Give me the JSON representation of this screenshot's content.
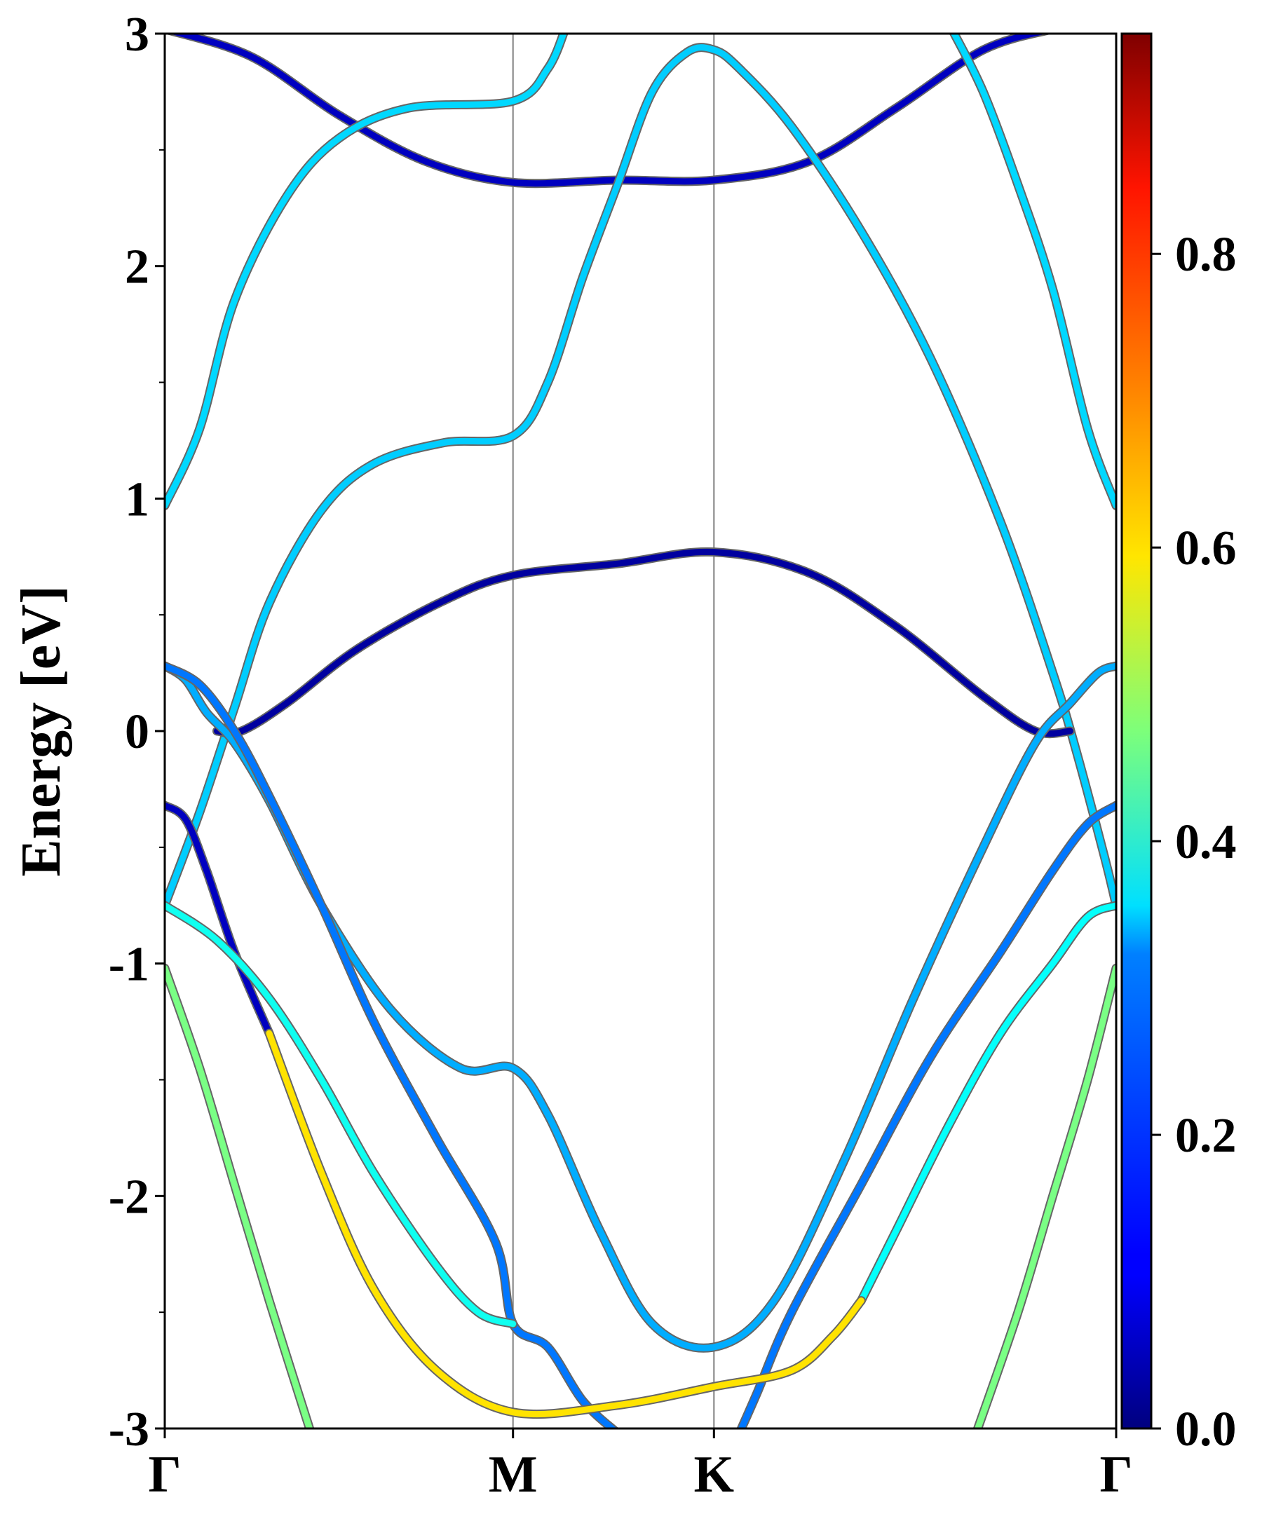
{
  "chart_data": {
    "type": "line",
    "title": "",
    "xlabel": "",
    "ylabel": "Energy [eV]",
    "ylim": [
      -3,
      3
    ],
    "x_ticks": [
      {
        "label": "Γ",
        "pos": 0.0
      },
      {
        "label": "M",
        "pos": 1.0
      },
      {
        "label": "K",
        "pos": 1.577
      },
      {
        "label": "Γ",
        "pos": 2.732
      }
    ],
    "y_ticks": [
      {
        "value": -3,
        "label": "-3"
      },
      {
        "value": -2,
        "label": "-2"
      },
      {
        "value": -1,
        "label": "-1"
      },
      {
        "value": 0,
        "label": "0"
      },
      {
        "value": 1,
        "label": "1"
      },
      {
        "value": 2,
        "label": "2"
      },
      {
        "value": 3,
        "label": "3"
      }
    ],
    "colorbar": {
      "colormap": "jet",
      "range": [
        0.0,
        0.95
      ],
      "ticks": [
        {
          "value": 0.0,
          "label": "0.0"
        },
        {
          "value": 0.2,
          "label": "0.2"
        },
        {
          "value": 0.4,
          "label": "0.4"
        },
        {
          "value": 0.6,
          "label": "0.6"
        },
        {
          "value": 0.8,
          "label": "0.8"
        }
      ]
    },
    "series": [
      {
        "weight": 0.06,
        "points": [
          [
            0,
            3.02
          ],
          [
            0.25,
            2.9
          ],
          [
            0.5,
            2.65
          ],
          [
            0.75,
            2.45
          ],
          [
            1.0,
            2.36
          ],
          [
            1.3,
            2.37
          ],
          [
            1.577,
            2.37
          ],
          [
            1.85,
            2.45
          ],
          [
            2.1,
            2.68
          ],
          [
            2.35,
            2.93
          ],
          [
            2.55,
            3.02
          ]
        ]
      },
      {
        "weight": 0.32,
        "points": [
          [
            0,
            0.97
          ],
          [
            0.1,
            1.3
          ],
          [
            0.2,
            1.85
          ],
          [
            0.35,
            2.3
          ],
          [
            0.5,
            2.55
          ],
          [
            0.7,
            2.68
          ],
          [
            1.0,
            2.71
          ],
          [
            1.1,
            2.85
          ],
          [
            1.15,
            3.02
          ]
        ]
      },
      {
        "weight": 0.31,
        "points": [
          [
            0,
            -0.75
          ],
          [
            0.1,
            -0.35
          ],
          [
            0.2,
            0.1
          ],
          [
            0.3,
            0.55
          ],
          [
            0.45,
            0.95
          ],
          [
            0.6,
            1.15
          ],
          [
            0.8,
            1.24
          ],
          [
            1.0,
            1.27
          ],
          [
            1.1,
            1.5
          ],
          [
            1.2,
            1.95
          ],
          [
            1.3,
            2.35
          ],
          [
            1.4,
            2.75
          ],
          [
            1.5,
            2.92
          ],
          [
            1.577,
            2.93
          ],
          [
            1.65,
            2.85
          ],
          [
            1.8,
            2.6
          ],
          [
            2.0,
            2.15
          ],
          [
            2.2,
            1.6
          ],
          [
            2.4,
            0.9
          ],
          [
            2.55,
            0.25
          ],
          [
            2.62,
            -0.1
          ],
          [
            2.7,
            -0.55
          ],
          [
            2.732,
            -0.75
          ]
        ]
      },
      {
        "weight": 0.32,
        "points": [
          [
            2.732,
            0.97
          ],
          [
            2.65,
            1.3
          ],
          [
            2.55,
            1.9
          ],
          [
            2.45,
            2.35
          ],
          [
            2.35,
            2.75
          ],
          [
            2.26,
            3.02
          ]
        ]
      },
      {
        "weight": 0.03,
        "points": [
          [
            0.15,
            0.0
          ],
          [
            0.22,
            0.0
          ],
          [
            0.35,
            0.12
          ],
          [
            0.55,
            0.35
          ],
          [
            0.8,
            0.56
          ],
          [
            1.0,
            0.67
          ],
          [
            1.3,
            0.72
          ],
          [
            1.577,
            0.77
          ],
          [
            1.85,
            0.68
          ],
          [
            2.1,
            0.45
          ],
          [
            2.35,
            0.15
          ],
          [
            2.5,
            0.0
          ],
          [
            2.6,
            0.0
          ]
        ]
      },
      {
        "weight": 0.28,
        "points": [
          [
            0,
            0.28
          ],
          [
            0.06,
            0.22
          ],
          [
            0.12,
            0.08
          ],
          [
            0.2,
            -0.05
          ],
          [
            0.3,
            -0.3
          ],
          [
            0.45,
            -0.75
          ],
          [
            0.65,
            -1.2
          ],
          [
            0.85,
            -1.45
          ],
          [
            1.0,
            -1.45
          ],
          [
            1.1,
            -1.65
          ],
          [
            1.25,
            -2.15
          ],
          [
            1.4,
            -2.55
          ],
          [
            1.577,
            -2.65
          ],
          [
            1.75,
            -2.45
          ],
          [
            1.95,
            -1.85
          ],
          [
            2.15,
            -1.15
          ],
          [
            2.35,
            -0.5
          ],
          [
            2.5,
            -0.05
          ],
          [
            2.6,
            0.12
          ],
          [
            2.68,
            0.25
          ],
          [
            2.732,
            0.28
          ]
        ]
      },
      {
        "weight": 0.23,
        "points": [
          [
            0,
            0.28
          ],
          [
            0.1,
            0.2
          ],
          [
            0.2,
            0.0
          ],
          [
            0.3,
            -0.28
          ],
          [
            0.45,
            -0.75
          ],
          [
            0.6,
            -1.25
          ],
          [
            0.78,
            -1.75
          ],
          [
            0.95,
            -2.2
          ],
          [
            1.0,
            -2.55
          ],
          [
            1.1,
            -2.65
          ],
          [
            1.2,
            -2.88
          ],
          [
            1.3,
            -3.02
          ]
        ]
      },
      {
        "weight": 0.06,
        "points": [
          [
            0,
            -0.32
          ],
          [
            0.06,
            -0.38
          ],
          [
            0.12,
            -0.6
          ],
          [
            0.2,
            -0.95
          ],
          [
            0.3,
            -1.3
          ]
        ]
      },
      {
        "weight": 0.23,
        "points": [
          [
            2.732,
            -0.32
          ],
          [
            2.65,
            -0.4
          ],
          [
            2.55,
            -0.6
          ],
          [
            2.4,
            -0.95
          ],
          [
            2.2,
            -1.4
          ],
          [
            2.0,
            -1.95
          ],
          [
            1.8,
            -2.5
          ],
          [
            1.7,
            -2.85
          ],
          [
            1.65,
            -3.02
          ]
        ]
      },
      {
        "weight": 0.37,
        "points": [
          [
            0,
            -0.75
          ],
          [
            0.15,
            -0.9
          ],
          [
            0.3,
            -1.15
          ],
          [
            0.45,
            -1.5
          ],
          [
            0.6,
            -1.9
          ],
          [
            0.78,
            -2.3
          ],
          [
            0.9,
            -2.5
          ],
          [
            1.0,
            -2.55
          ]
        ]
      },
      {
        "weight": 0.36,
        "points": [
          [
            2.732,
            -0.75
          ],
          [
            2.65,
            -0.8
          ],
          [
            2.55,
            -1.0
          ],
          [
            2.4,
            -1.3
          ],
          [
            2.25,
            -1.7
          ],
          [
            2.1,
            -2.15
          ],
          [
            2.0,
            -2.45
          ]
        ]
      },
      {
        "weight": 0.47,
        "points": [
          [
            0,
            -1.02
          ],
          [
            0.1,
            -1.45
          ],
          [
            0.2,
            -1.95
          ],
          [
            0.3,
            -2.45
          ],
          [
            0.42,
            -3.02
          ]
        ]
      },
      {
        "weight": 0.62,
        "points": [
          [
            0.3,
            -1.3
          ],
          [
            0.45,
            -1.9
          ],
          [
            0.6,
            -2.4
          ],
          [
            0.78,
            -2.75
          ],
          [
            1.0,
            -2.93
          ],
          [
            1.3,
            -2.9
          ],
          [
            1.577,
            -2.82
          ],
          [
            1.8,
            -2.75
          ],
          [
            1.92,
            -2.6
          ],
          [
            2.0,
            -2.45
          ]
        ]
      },
      {
        "weight": 0.47,
        "points": [
          [
            2.732,
            -1.02
          ],
          [
            2.65,
            -1.5
          ],
          [
            2.55,
            -2.0
          ],
          [
            2.45,
            -2.5
          ],
          [
            2.33,
            -3.02
          ]
        ]
      }
    ]
  }
}
